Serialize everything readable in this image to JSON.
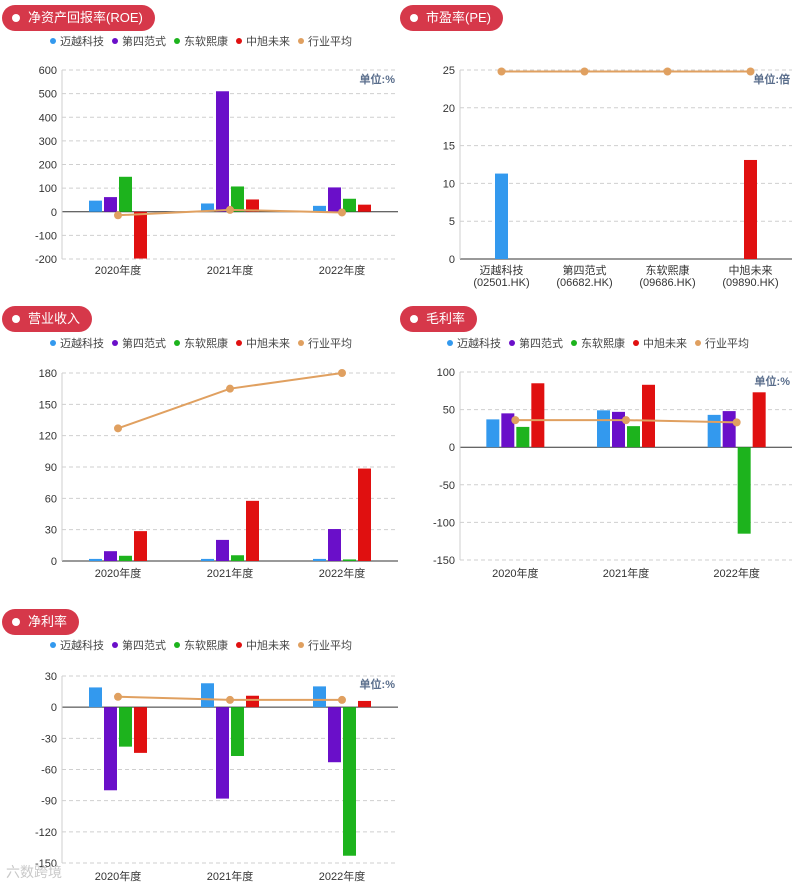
{
  "colors": {
    "pill": "#d6384a",
    "series": [
      "#3399ee",
      "#6a0fc9",
      "#1db31d",
      "#e01010",
      "#e0a060"
    ]
  },
  "legend": [
    "迈越科技",
    "第四范式",
    "东软熙康",
    "中旭未来",
    "行业平均"
  ],
  "watermark": "六数跨境",
  "chart_data": [
    {
      "id": "roe",
      "type": "bar",
      "title": "净资产回报率(ROE)",
      "unit": "单位:%",
      "categories": [
        "2020年度",
        "2021年度",
        "2022年度"
      ],
      "ylim": [
        -200,
        600
      ],
      "yticks": [
        -200,
        -100,
        0,
        100,
        200,
        300,
        400,
        500,
        600
      ],
      "series": [
        {
          "name": "迈越科技",
          "values": [
            47,
            35,
            25
          ]
        },
        {
          "name": "第四范式",
          "values": [
            62,
            510,
            103
          ]
        },
        {
          "name": "东软熙康",
          "values": [
            148,
            107,
            55
          ]
        },
        {
          "name": "中旭未来",
          "values": [
            -198,
            52,
            30
          ]
        }
      ],
      "line": {
        "name": "行业平均",
        "values": [
          -15,
          8,
          -3
        ]
      },
      "grid": true,
      "legend_position": "top-left"
    },
    {
      "id": "pe",
      "type": "bar",
      "title": "市盈率(PE)",
      "unit": "单位:倍",
      "categories": [
        "迈越科技\n(02501.HK)",
        "第四范式\n(06682.HK)",
        "东软熙康\n(09686.HK)",
        "中旭未来\n(09890.HK)"
      ],
      "ylim": [
        0,
        25
      ],
      "yticks": [
        0,
        5,
        10,
        15,
        20,
        25
      ],
      "bars": [
        {
          "category": 0,
          "series": 0,
          "value": 11.3
        },
        {
          "category": 3,
          "series": 3,
          "value": 13.1
        }
      ],
      "line": {
        "name": "行业平均",
        "values": [
          24.8,
          24.8,
          24.8,
          24.8
        ]
      },
      "grid": true
    },
    {
      "id": "revenue",
      "type": "bar",
      "title": "营业收入",
      "unit": "",
      "categories": [
        "2020年度",
        "2021年度",
        "2022年度"
      ],
      "ylim": [
        0,
        180
      ],
      "yticks": [
        0,
        30,
        60,
        90,
        120,
        150,
        180
      ],
      "series": [
        {
          "name": "迈越科技",
          "values": [
            2,
            2,
            2
          ]
        },
        {
          "name": "第四范式",
          "values": [
            9.4,
            20.2,
            30.6
          ]
        },
        {
          "name": "东软熙康",
          "values": [
            5,
            5.5,
            1.5
          ]
        },
        {
          "name": "中旭未来",
          "values": [
            28.6,
            57.6,
            88.5
          ]
        }
      ],
      "line": {
        "name": "行业平均",
        "values": [
          127,
          165,
          180
        ]
      },
      "grid": true,
      "legend_position": "top-left"
    },
    {
      "id": "gross",
      "type": "bar",
      "title": "毛利率",
      "unit": "单位:%",
      "categories": [
        "2020年度",
        "2021年度",
        "2022年度"
      ],
      "ylim": [
        -150,
        100
      ],
      "yticks": [
        -150,
        -100,
        -50,
        0,
        50,
        100
      ],
      "series": [
        {
          "name": "迈越科技",
          "values": [
            37,
            49,
            43
          ]
        },
        {
          "name": "第四范式",
          "values": [
            45,
            47,
            48
          ]
        },
        {
          "name": "东软熙康",
          "values": [
            27,
            28,
            -115
          ]
        },
        {
          "name": "中旭未来",
          "values": [
            85,
            83,
            73
          ]
        }
      ],
      "line": {
        "name": "行业平均",
        "values": [
          36,
          36,
          33
        ]
      },
      "grid": true,
      "legend_position": "top-left"
    },
    {
      "id": "netmargin",
      "type": "bar",
      "title": "净利率",
      "unit": "单位:%",
      "categories": [
        "2020年度",
        "2021年度",
        "2022年度"
      ],
      "ylim": [
        -150,
        30
      ],
      "yticks": [
        -150,
        -120,
        -90,
        -60,
        -30,
        0,
        30
      ],
      "series": [
        {
          "name": "迈越科技",
          "values": [
            19,
            23,
            20
          ]
        },
        {
          "name": "第四范式",
          "values": [
            -80,
            -88,
            -53
          ]
        },
        {
          "name": "东软熙康",
          "values": [
            -38,
            -47,
            -143
          ]
        },
        {
          "name": "中旭未来",
          "values": [
            -44,
            11,
            6
          ]
        }
      ],
      "line": {
        "name": "行业平均",
        "values": [
          10,
          7,
          7
        ]
      },
      "grid": true,
      "legend_position": "top-left"
    }
  ]
}
